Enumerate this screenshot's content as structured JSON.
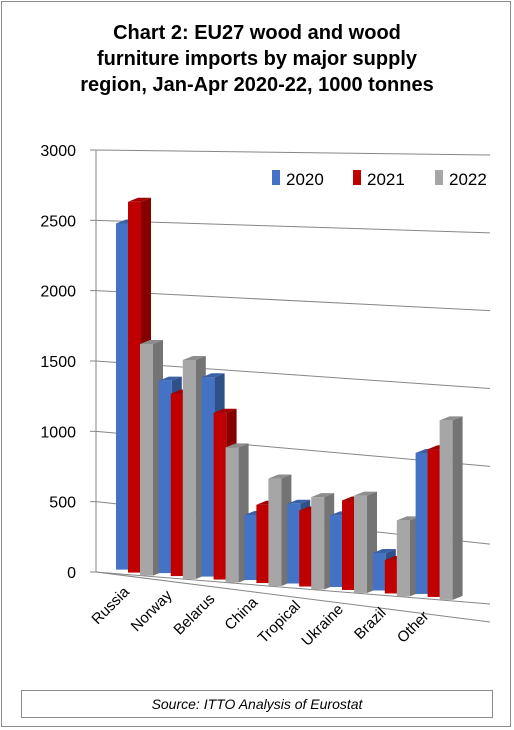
{
  "chart_data": {
    "type": "bar",
    "title_lines": [
      "Chart 2: EU27 wood and wood",
      "furniture imports by major supply",
      "region, Jan-Apr 2020-22, 1000 tonnes"
    ],
    "categories": [
      "Russia",
      "Norway",
      "Belarus",
      "China",
      "Tropical",
      "Ukraine",
      "Brazil",
      "Other"
    ],
    "series": [
      {
        "name": "2020",
        "color": "#4472c4",
        "values": [
          2500,
          1380,
          1420,
          460,
          560,
          500,
          260,
          970
        ]
      },
      {
        "name": "2021",
        "color": "#c00000",
        "values": [
          2660,
          1300,
          1180,
          550,
          530,
          620,
          230,
          1010
        ]
      },
      {
        "name": "2022",
        "color": "#a6a6a6",
        "values": [
          1650,
          1550,
          950,
          750,
          640,
          670,
          520,
          1220
        ]
      }
    ],
    "y_ticks": [
      "0",
      "500",
      "1000",
      "1500",
      "2000",
      "2500",
      "3000"
    ],
    "ylim": [
      0,
      3000
    ],
    "legend_position": "top-right",
    "chart_style": "3d-clustered-column",
    "source": "Source: ITTO Analysis of Eurostat"
  }
}
